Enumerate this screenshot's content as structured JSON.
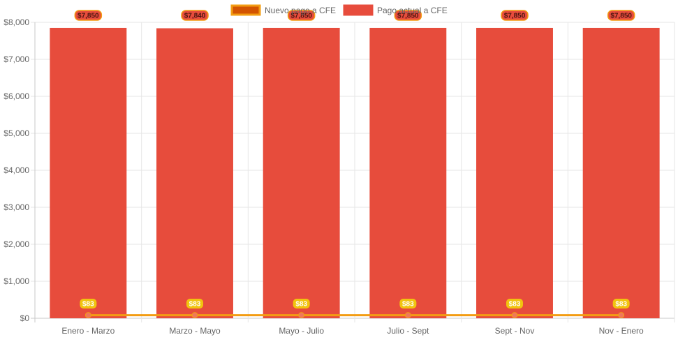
{
  "chart_data": {
    "type": "bar",
    "categories": [
      "Enero - Marzo",
      "Marzo - Mayo",
      "Mayo - Julio",
      "Julio - Sept",
      "Sept - Nov",
      "Nov - Enero"
    ],
    "series": [
      {
        "name": "Nuevo pago a CFE",
        "type": "line",
        "values": [
          83,
          83,
          83,
          83,
          83,
          83
        ],
        "labels": [
          "$83",
          "$83",
          "$83",
          "$83",
          "$83",
          "$83"
        ],
        "color": "#f39c12",
        "fill": "#d35400"
      },
      {
        "name": "Pago actual a CFE",
        "type": "bar",
        "values": [
          7850,
          7840,
          7850,
          7850,
          7850,
          7850
        ],
        "labels": [
          "$7,850",
          "$7,840",
          "$7,850",
          "$7,850",
          "$7,850",
          "$7,850"
        ],
        "color": "#e74c3c"
      }
    ],
    "ylim": [
      0,
      8000
    ],
    "yticks": [
      {
        "value": 0,
        "label": "$0"
      },
      {
        "value": 1000,
        "label": "$1,000"
      },
      {
        "value": 2000,
        "label": "$2,000"
      },
      {
        "value": 3000,
        "label": "$3,000"
      },
      {
        "value": 4000,
        "label": "$4,000"
      },
      {
        "value": 5000,
        "label": "$5,000"
      },
      {
        "value": 6000,
        "label": "$6,000"
      },
      {
        "value": 7000,
        "label": "$7,000"
      },
      {
        "value": 8000,
        "label": "$8,000"
      }
    ],
    "grid": true,
    "legend": "top-center"
  }
}
